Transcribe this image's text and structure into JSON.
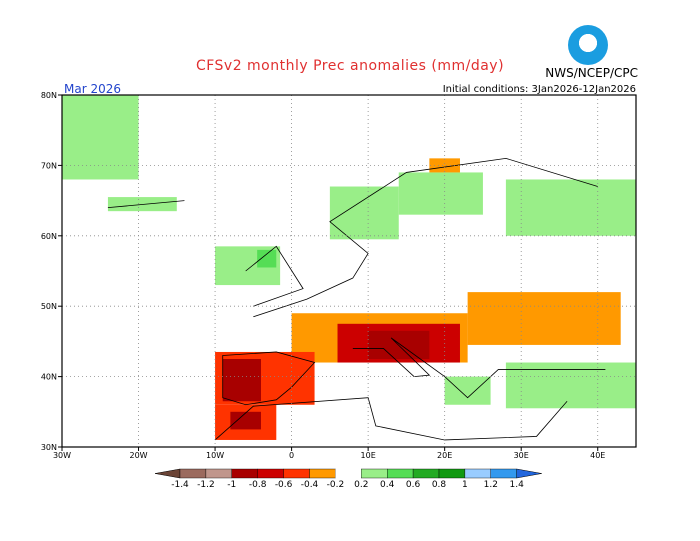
{
  "header": {
    "title": "CFSv2 monthly Prec anomalies (mm/day)",
    "agency": "NWS/NCEP/CPC",
    "month": "Mar 2026",
    "initial_conditions": "Initial conditions: 3Jan2026-12Jan2026",
    "logo": "noaa-logo"
  },
  "map": {
    "lon_range": [
      -30,
      45
    ],
    "lat_range": [
      30,
      80
    ],
    "lat_labels": [
      {
        "lat": 80,
        "text": "80N"
      },
      {
        "lat": 70,
        "text": "70N"
      },
      {
        "lat": 60,
        "text": "60N"
      },
      {
        "lat": 50,
        "text": "50N"
      },
      {
        "lat": 40,
        "text": "40N"
      },
      {
        "lat": 30,
        "text": "30N"
      }
    ],
    "lon_labels": [
      {
        "lon": -30,
        "text": "30W"
      },
      {
        "lon": -20,
        "text": "20W"
      },
      {
        "lon": -10,
        "text": "10W"
      },
      {
        "lon": 0,
        "text": "0"
      },
      {
        "lon": 10,
        "text": "10E"
      },
      {
        "lon": 20,
        "text": "20E"
      },
      {
        "lon": 30,
        "text": "30E"
      },
      {
        "lon": 40,
        "text": "40E"
      }
    ],
    "anomaly_regions": [
      {
        "area": "Greenland",
        "lon": [
          -30,
          -20
        ],
        "lat": [
          68,
          80
        ],
        "value": 0.3
      },
      {
        "area": "Iceland",
        "lon": [
          -24,
          -15
        ],
        "lat": [
          63.5,
          65.5
        ],
        "value": 0.3
      },
      {
        "area": "British Isles",
        "lon": [
          -10,
          -1.5
        ],
        "lat": [
          53,
          58.5
        ],
        "value": 0.3
      },
      {
        "area": "Scotland",
        "lon": [
          -4.5,
          -2
        ],
        "lat": [
          55.5,
          58
        ],
        "value": 0.5
      },
      {
        "area": "Norway",
        "lon": [
          5,
          14
        ],
        "lat": [
          59.5,
          67
        ],
        "value": 0.3
      },
      {
        "area": "Sweden/Finland",
        "lon": [
          14,
          25
        ],
        "lat": [
          63,
          69
        ],
        "value": 0.3
      },
      {
        "area": "NW Russia",
        "lon": [
          28,
          45
        ],
        "lat": [
          60,
          68
        ],
        "value": 0.3
      },
      {
        "area": "N Scandinavia",
        "lon": [
          18,
          22
        ],
        "lat": [
          69,
          71
        ],
        "value": -0.3
      },
      {
        "area": "Ukraine/S Russia",
        "lon": [
          23,
          43
        ],
        "lat": [
          44.5,
          52
        ],
        "value": -0.3
      },
      {
        "area": "France/Alps",
        "lon": [
          0,
          23
        ],
        "lat": [
          42,
          49
        ],
        "value": -0.3
      },
      {
        "area": "Italy/Balkans",
        "lon": [
          6,
          22
        ],
        "lat": [
          42,
          47.5
        ],
        "value": -0.7
      },
      {
        "area": "Adriatic",
        "lon": [
          10,
          18
        ],
        "lat": [
          42.5,
          46.5
        ],
        "value": -0.9
      },
      {
        "area": "Iberia",
        "lon": [
          -10,
          3
        ],
        "lat": [
          36,
          43.5
        ],
        "value": -0.5
      },
      {
        "area": "W Iberia",
        "lon": [
          -9,
          -4
        ],
        "lat": [
          36.5,
          42.5
        ],
        "value": -0.9
      },
      {
        "area": "Morocco",
        "lon": [
          -10,
          -2
        ],
        "lat": [
          31,
          36
        ],
        "value": -0.5
      },
      {
        "area": "Morocco core",
        "lon": [
          -8,
          -4
        ],
        "lat": [
          32.5,
          35
        ],
        "value": -0.9
      },
      {
        "area": "Turkey/Black Sea",
        "lon": [
          28,
          45
        ],
        "lat": [
          35.5,
          42
        ],
        "value": 0.3
      },
      {
        "area": "Greece",
        "lon": [
          20,
          26
        ],
        "lat": [
          36,
          40
        ],
        "value": 0.3
      }
    ]
  },
  "colorbar": {
    "labels": [
      "-1.4",
      "-1.2",
      "-1",
      "-0.8",
      "-0.6",
      "-0.4",
      "-0.2",
      "0.2",
      "0.4",
      "0.6",
      "0.8",
      "1",
      "1.2",
      "1.4"
    ],
    "colors": [
      "#6b4436",
      "#9b6a5e",
      "#c0968c",
      "#a80000",
      "#cc0000",
      "#ff3300",
      "#ff9900",
      "#ffffff",
      "#99ee88",
      "#55dd55",
      "#22aa22",
      "#119911",
      "#99ccff",
      "#3399ee",
      "#2266dd"
    ],
    "bins": [
      -1.4,
      -1.2,
      -1,
      -0.8,
      -0.6,
      -0.4,
      -0.2,
      0.2,
      0.4,
      0.6,
      0.8,
      1,
      1.2,
      1.4
    ]
  }
}
